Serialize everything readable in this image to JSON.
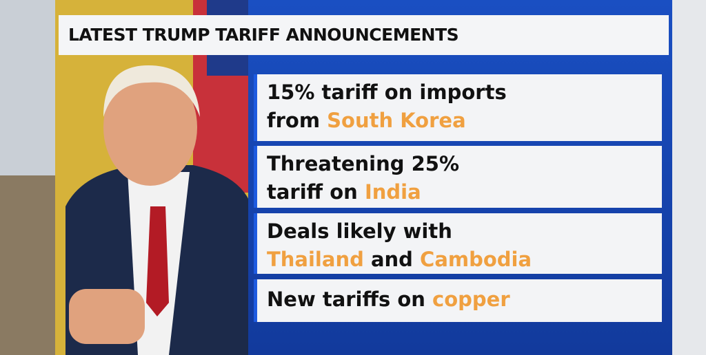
{
  "header": {
    "title": "LATEST TRUMP TARIFF ANNOUNCEMENTS"
  },
  "items": [
    {
      "lines": [
        [
          {
            "text": "15% tariff on imports",
            "color": "#111111"
          }
        ],
        [
          {
            "text": "from ",
            "color": "#111111"
          },
          {
            "text": "South Korea",
            "color": "#f0a040"
          }
        ]
      ]
    },
    {
      "lines": [
        [
          {
            "text": "Threatening 25%",
            "color": "#111111"
          }
        ],
        [
          {
            "text": "tariff on ",
            "color": "#111111"
          },
          {
            "text": "India",
            "color": "#f0a040"
          }
        ]
      ]
    },
    {
      "lines": [
        [
          {
            "text": "Deals likely with",
            "color": "#111111"
          }
        ],
        [
          {
            "text": "Thailand",
            "color": "#f0a040"
          },
          {
            "text": " and ",
            "color": "#111111"
          },
          {
            "text": "Cambodia",
            "color": "#f0a040"
          }
        ]
      ]
    },
    {
      "lines": [
        [
          {
            "text": "New tariffs on ",
            "color": "#111111"
          },
          {
            "text": "copper",
            "color": "#f0a040"
          }
        ]
      ]
    }
  ]
}
